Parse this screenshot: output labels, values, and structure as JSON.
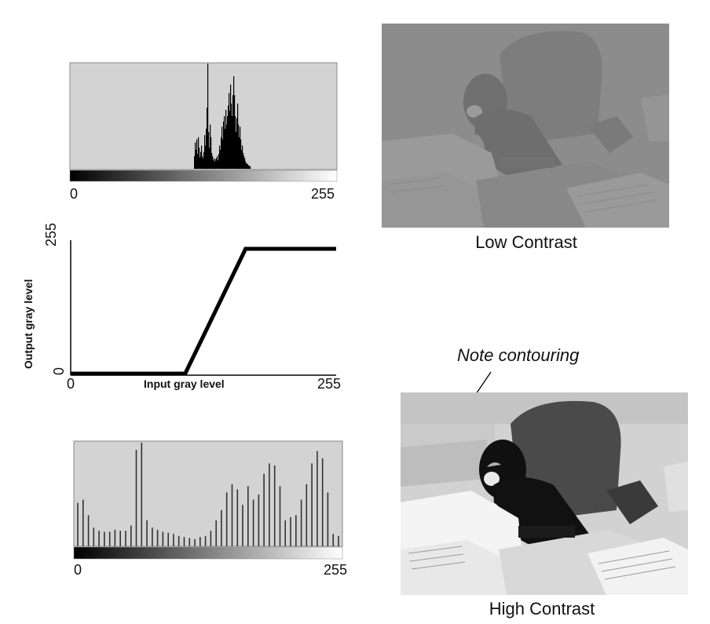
{
  "histogram_low": {
    "axis_min_label": "0",
    "axis_max_label": "255",
    "bins": [
      [
        246,
        0.12
      ],
      [
        247,
        0.25
      ],
      [
        248,
        0.18
      ],
      [
        249,
        0.28
      ],
      [
        250,
        0.14
      ],
      [
        251,
        0.3
      ],
      [
        252,
        0.2
      ],
      [
        253,
        0.11
      ],
      [
        254,
        0.16
      ],
      [
        255,
        0.22
      ],
      [
        256,
        0.12
      ],
      [
        257,
        0.1
      ],
      [
        258,
        0.16
      ],
      [
        259,
        0.32
      ],
      [
        260,
        0.22
      ],
      [
        261,
        0.38
      ],
      [
        262,
        0.58
      ],
      [
        263,
        1.0
      ],
      [
        264,
        0.35
      ],
      [
        265,
        0.2
      ],
      [
        266,
        0.42
      ],
      [
        267,
        0.3
      ],
      [
        268,
        0.15
      ],
      [
        269,
        0.12
      ],
      [
        270,
        0.08
      ],
      [
        271,
        0.1
      ],
      [
        272,
        0.07
      ],
      [
        273,
        0.09
      ],
      [
        274,
        0.1
      ],
      [
        275,
        0.12
      ],
      [
        276,
        0.08
      ],
      [
        277,
        0.14
      ],
      [
        278,
        0.22
      ],
      [
        279,
        0.18
      ],
      [
        280,
        0.3
      ],
      [
        281,
        0.4
      ],
      [
        282,
        0.28
      ],
      [
        283,
        0.45
      ],
      [
        284,
        0.5
      ],
      [
        285,
        0.38
      ],
      [
        286,
        0.56
      ],
      [
        287,
        0.42
      ],
      [
        288,
        0.5
      ],
      [
        289,
        0.6
      ],
      [
        290,
        0.72
      ],
      [
        291,
        0.55
      ],
      [
        292,
        0.8
      ],
      [
        293,
        0.62
      ],
      [
        294,
        0.5
      ],
      [
        295,
        0.7
      ],
      [
        296,
        0.88
      ],
      [
        297,
        0.7
      ],
      [
        298,
        0.5
      ],
      [
        299,
        0.35
      ],
      [
        300,
        0.48
      ],
      [
        301,
        0.62
      ],
      [
        302,
        0.42
      ],
      [
        303,
        0.3
      ],
      [
        304,
        0.4
      ],
      [
        305,
        0.28
      ],
      [
        306,
        0.18
      ],
      [
        307,
        0.22
      ],
      [
        308,
        0.15
      ],
      [
        309,
        0.12
      ],
      [
        310,
        0.1
      ],
      [
        311,
        0.07
      ],
      [
        312,
        0.05
      ],
      [
        313,
        0.05
      ],
      [
        314,
        0.04
      ],
      [
        315,
        0.03
      ],
      [
        316,
        0.03
      ],
      [
        317,
        0.02
      ]
    ]
  },
  "transfer": {
    "y_max_label": "255",
    "y_min_label": "0",
    "x_min_label": "0",
    "x_max_label": "255",
    "ylabel": "Output gray level",
    "xlabel": "Input gray level",
    "curve": [
      [
        0,
        0
      ],
      [
        110,
        0
      ],
      [
        168,
        255
      ],
      [
        255,
        255
      ]
    ]
  },
  "histogram_high": {
    "axis_min_label": "0",
    "axis_max_label": "255",
    "bars": [
      0.42,
      0.45,
      0.3,
      0.18,
      0.15,
      0.14,
      0.14,
      0.16,
      0.15,
      0.15,
      0.2,
      0.93,
      1.0,
      0.25,
      0.18,
      0.16,
      0.14,
      0.13,
      0.12,
      0.1,
      0.09,
      0.08,
      0.07,
      0.09,
      0.1,
      0.15,
      0.25,
      0.35,
      0.52,
      0.6,
      0.55,
      0.4,
      0.58,
      0.45,
      0.5,
      0.7,
      0.8,
      0.78,
      0.58,
      0.25,
      0.28,
      0.3,
      0.45,
      0.6,
      0.8,
      0.92,
      0.85,
      0.52,
      0.12,
      0.1
    ]
  },
  "photo_low": {
    "caption": "Low Contrast"
  },
  "photo_high": {
    "caption": "High Contrast"
  },
  "annotation": {
    "text": "Note contouring"
  }
}
